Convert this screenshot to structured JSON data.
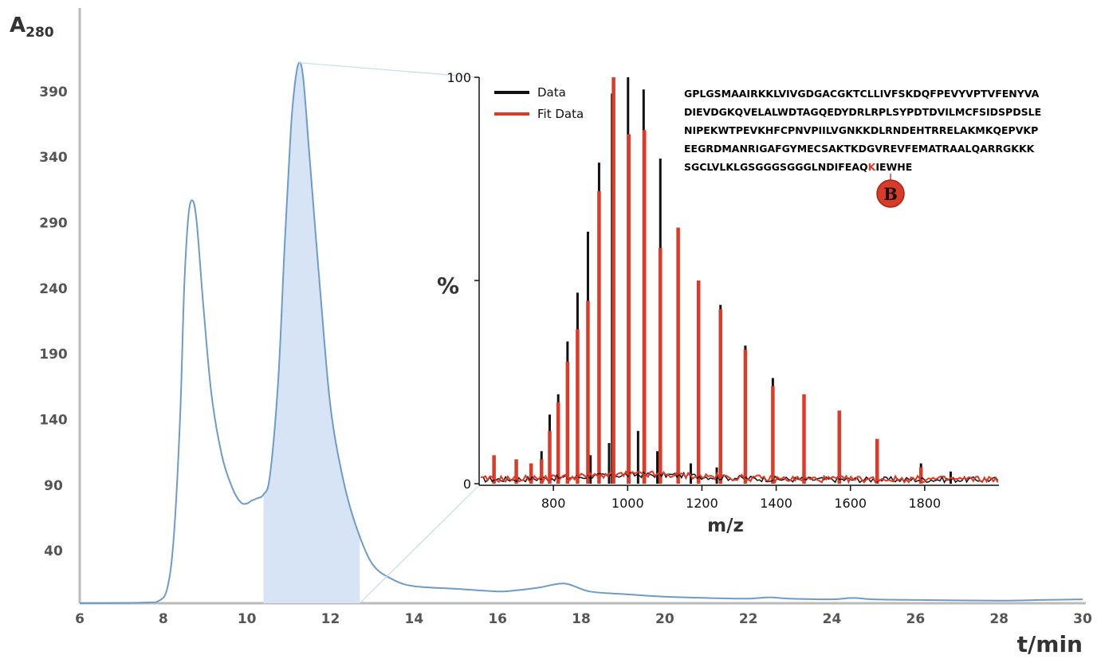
{
  "chart_data": [
    {
      "type": "area",
      "title": "",
      "xlabel": "t/min",
      "ylabel": "A",
      "ylabel_subscript": "280",
      "xlim": [
        6,
        30
      ],
      "ylim": [
        0,
        410
      ],
      "x_ticks": [
        "6",
        "8",
        "10",
        "12",
        "14",
        "16",
        "18",
        "20",
        "22",
        "24",
        "26",
        "28",
        "30"
      ],
      "y_ticks": [
        "40",
        "90",
        "140",
        "190",
        "240",
        "290",
        "340",
        "390"
      ],
      "series": [
        {
          "color": "#6d9cc9",
          "points": [
            [
              6,
              0
            ],
            [
              7.5,
              0.5
            ],
            [
              7.9,
              2
            ],
            [
              8.1,
              12
            ],
            [
              8.25,
              50
            ],
            [
              8.4,
              140
            ],
            [
              8.5,
              240
            ],
            [
              8.6,
              295
            ],
            [
              8.7,
              307
            ],
            [
              8.8,
              290
            ],
            [
              8.95,
              230
            ],
            [
              9.15,
              160
            ],
            [
              9.4,
              113
            ],
            [
              9.65,
              88
            ],
            [
              9.85,
              77
            ],
            [
              10,
              76
            ],
            [
              10.1,
              78
            ],
            [
              10.25,
              80
            ],
            [
              10.4,
              83
            ],
            [
              10.55,
              97
            ],
            [
              10.75,
              170
            ],
            [
              10.9,
              270
            ],
            [
              11.05,
              360
            ],
            [
              11.15,
              396
            ],
            [
              11.25,
              412
            ],
            [
              11.35,
              400
            ],
            [
              11.5,
              340
            ],
            [
              11.75,
              240
            ],
            [
              12,
              150
            ],
            [
              12.3,
              95
            ],
            [
              12.6,
              60
            ],
            [
              13,
              30
            ],
            [
              13.5,
              18
            ],
            [
              14,
              13
            ],
            [
              15,
              11
            ],
            [
              16,
              9
            ],
            [
              16.5,
              10
            ],
            [
              17,
              12
            ],
            [
              17.6,
              15
            ],
            [
              18.2,
              9
            ],
            [
              19,
              7
            ],
            [
              20,
              5
            ],
            [
              21,
              4
            ],
            [
              22,
              3.5
            ],
            [
              22.5,
              4.5
            ],
            [
              23,
              3.5
            ],
            [
              24,
              3
            ],
            [
              24.5,
              4
            ],
            [
              25,
              3
            ],
            [
              26,
              2.5
            ],
            [
              28,
              2
            ],
            [
              29,
              2.5
            ],
            [
              30,
              3
            ]
          ]
        }
      ],
      "highlight_range": [
        10.4,
        12.7
      ]
    },
    {
      "type": "bar",
      "xlabel": "m/z",
      "ylabel": "%",
      "xlim": [
        600,
        2000
      ],
      "ylim": [
        0,
        100
      ],
      "x_ticks": [
        "800",
        "1000",
        "1200",
        "1400",
        "1600",
        "1800"
      ],
      "y_ticks": [
        "0",
        "100"
      ],
      "legend_position": "top-left",
      "series": [
        {
          "name": "Data",
          "color": "#111111",
          "peaks": [
            [
              640,
              4
            ],
            [
              700,
              4
            ],
            [
              740,
              5
            ],
            [
              768,
              8
            ],
            [
              790,
              17
            ],
            [
              813,
              22
            ],
            [
              838,
              35
            ],
            [
              865,
              47
            ],
            [
              893,
              62
            ],
            [
              923,
              79
            ],
            [
              958,
              96
            ],
            [
              1001,
              100
            ],
            [
              1043,
              97
            ],
            [
              1088,
              80
            ],
            [
              1136,
              63
            ],
            [
              1191,
              49
            ],
            [
              1250,
              44
            ],
            [
              1317,
              34
            ],
            [
              1391,
              26
            ],
            [
              1475,
              20
            ],
            [
              1570,
              17
            ],
            [
              1672,
              11
            ],
            [
              1790,
              5
            ],
            [
              1870,
              3
            ],
            [
              1028,
              13
            ],
            [
              950,
              10
            ],
            [
              900,
              7
            ],
            [
              1080,
              8
            ],
            [
              1170,
              5
            ],
            [
              1240,
              4
            ]
          ]
        },
        {
          "name": "Fit Data",
          "color": "#dd3a28",
          "peaks": [
            [
              640,
              7
            ],
            [
              700,
              6
            ],
            [
              740,
              5
            ],
            [
              768,
              6
            ],
            [
              790,
              13
            ],
            [
              813,
              20
            ],
            [
              838,
              30
            ],
            [
              865,
              38
            ],
            [
              893,
              45
            ],
            [
              923,
              72
            ],
            [
              962,
              100
            ],
            [
              1003,
              86
            ],
            [
              1045,
              87
            ],
            [
              1088,
              58
            ],
            [
              1136,
              63
            ],
            [
              1191,
              50
            ],
            [
              1250,
              43
            ],
            [
              1317,
              33
            ],
            [
              1391,
              24
            ],
            [
              1475,
              22
            ],
            [
              1570,
              18
            ],
            [
              1672,
              11
            ],
            [
              1790,
              4
            ]
          ]
        }
      ]
    }
  ],
  "sequence": {
    "lines": [
      "GPLGSMAAIRKKLVIVGDGACGKTCLLIVFSKDQFPEVYVPTVFENYVA",
      "DIEVDGKQVELALWDTAGQEDYDRLRPLSYPDTDVILMCFSIDSPDSLE",
      "NIPEKWTPEVKHFCPNVPIILVGNKKDLRNDEHTRRELAKMKQEPVKP",
      "EEGRDMANRIGAFGYMECSAKTKDGVREVFEMATRAALQARRGKKK"
    ],
    "last_line_before": "SGCLVLKLGSGGGSGGGLNDIFEAQ",
    "highlight_residue": "K",
    "last_line_after": "IEWHE",
    "highlight_color": "#dd3a28",
    "marker_label": "B",
    "marker_color": "#d83b27"
  }
}
